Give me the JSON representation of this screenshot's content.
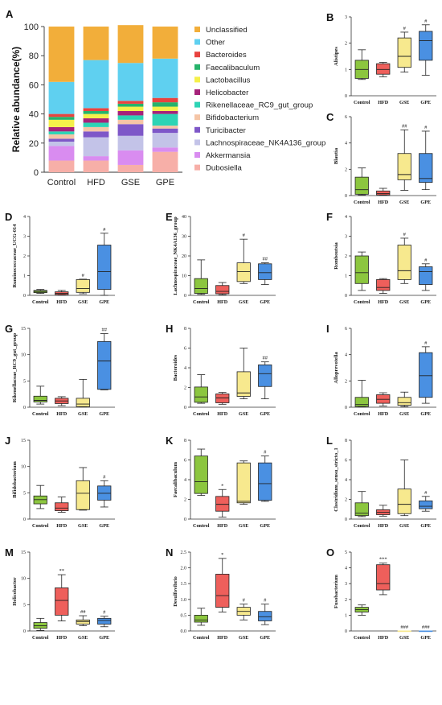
{
  "chart_data": [
    {
      "panel": "A",
      "type": "bar",
      "stacked": true,
      "ylabel": "Relative abundance(%)",
      "ylim": [
        0,
        100
      ],
      "yticks": [
        "0",
        "20",
        "40",
        "60",
        "80",
        "100"
      ],
      "categories": [
        "Control",
        "HFD",
        "GSE",
        "GPE"
      ],
      "series": [
        {
          "name": "Dubosiella",
          "color": "#F7AFA8",
          "values": [
            8,
            8,
            5,
            14
          ]
        },
        {
          "name": "Akkermansia",
          "color": "#D98CF0",
          "values": [
            10,
            3,
            10,
            3
          ]
        },
        {
          "name": "Lachnospiraceae_NK4A136_group",
          "color": "#C3C3E8",
          "values": [
            3,
            13,
            10,
            10
          ]
        },
        {
          "name": "Turicibacter",
          "color": "#7E57C8",
          "values": [
            2,
            4,
            8,
            3
          ]
        },
        {
          "name": "Bifidobacterium",
          "color": "#F5C5A6",
          "values": [
            3,
            3,
            3,
            2
          ]
        },
        {
          "name": "Rikenellaceae_RC9_gut_group",
          "color": "#2DD4B5",
          "values": [
            2,
            3,
            3,
            8
          ]
        },
        {
          "name": "Helicobacter",
          "color": "#A6227A",
          "values": [
            3,
            3,
            3,
            2
          ]
        },
        {
          "name": "Lactobacillus",
          "color": "#F5F04A",
          "values": [
            5,
            3,
            3,
            3
          ]
        },
        {
          "name": "Faecalibaculum",
          "color": "#26B36B",
          "values": [
            2,
            2,
            2,
            3
          ]
        },
        {
          "name": "Bacteroides",
          "color": "#E8433F",
          "values": [
            2,
            2,
            2,
            3
          ]
        },
        {
          "name": "Other",
          "color": "#5FD0F0",
          "values": [
            22,
            33,
            26,
            27
          ]
        },
        {
          "name": "Unclassified",
          "color": "#F2AE3A",
          "values": [
            38,
            23,
            26,
            22
          ]
        }
      ]
    },
    {
      "panel": "B",
      "type": "box",
      "ylabel": "Alistipes",
      "ylim": [
        0,
        3
      ],
      "yticks": [
        "0",
        "1",
        "2",
        "3"
      ],
      "categories": [
        "Control",
        "HFD",
        "GSE",
        "GPE"
      ],
      "boxes": [
        {
          "min": 0.62,
          "q1": 0.66,
          "median": 1.0,
          "q3": 1.35,
          "max": 1.75,
          "sig": ""
        },
        {
          "min": 0.72,
          "q1": 0.82,
          "median": 1.0,
          "q3": 1.22,
          "max": 1.27,
          "sig": ""
        },
        {
          "min": 0.9,
          "q1": 1.08,
          "median": 1.5,
          "q3": 2.2,
          "max": 2.42,
          "sig": "#"
        },
        {
          "min": 0.78,
          "q1": 1.35,
          "median": 2.1,
          "q3": 2.45,
          "max": 2.7,
          "sig": "#"
        }
      ]
    },
    {
      "panel": "C",
      "type": "box",
      "ylabel": "Blautia",
      "ylim": [
        0,
        6
      ],
      "yticks": [
        "0",
        "2",
        "4",
        "6"
      ],
      "categories": [
        "Control",
        "HFD",
        "GSE",
        "GPE"
      ],
      "boxes": [
        {
          "min": 0.05,
          "q1": 0.1,
          "median": 0.45,
          "q3": 1.4,
          "max": 2.1,
          "sig": ""
        },
        {
          "min": 0.02,
          "q1": 0.05,
          "median": 0.15,
          "q3": 0.35,
          "max": 0.55,
          "sig": ""
        },
        {
          "min": 0.4,
          "q1": 1.2,
          "median": 1.6,
          "q3": 3.2,
          "max": 5.0,
          "sig": "##"
        },
        {
          "min": 0.45,
          "q1": 1.0,
          "median": 1.3,
          "q3": 3.2,
          "max": 4.9,
          "sig": "#"
        }
      ]
    },
    {
      "panel": "D",
      "type": "box",
      "ylabel": "Ruminococcaceae_UCG-014",
      "ylim": [
        0,
        4
      ],
      "yticks": [
        "0",
        "1",
        "2",
        "3",
        "4"
      ],
      "categories": [
        "Control",
        "HFD",
        "GSE",
        "GPE"
      ],
      "boxes": [
        {
          "min": 0.1,
          "q1": 0.14,
          "median": 0.2,
          "q3": 0.25,
          "max": 0.3,
          "sig": ""
        },
        {
          "min": 0.02,
          "q1": 0.04,
          "median": 0.1,
          "q3": 0.18,
          "max": 0.25,
          "sig": ""
        },
        {
          "min": 0.08,
          "q1": 0.15,
          "median": 0.35,
          "q3": 0.8,
          "max": 0.82,
          "sig": "#"
        },
        {
          "min": 0.0,
          "q1": 0.3,
          "median": 1.2,
          "q3": 2.55,
          "max": 3.15,
          "sig": "#"
        }
      ]
    },
    {
      "panel": "E",
      "type": "box",
      "ylabel": "Lachnospiraceae_NK4A136_group",
      "ylim": [
        0,
        40
      ],
      "yticks": [
        "0",
        "10",
        "20",
        "30",
        "40"
      ],
      "categories": [
        "Control",
        "HFD",
        "GSE",
        "GPE"
      ],
      "boxes": [
        {
          "min": 0.5,
          "q1": 1.0,
          "median": 3.5,
          "q3": 8.5,
          "max": 18.0,
          "sig": ""
        },
        {
          "min": 0.3,
          "q1": 0.8,
          "median": 2.0,
          "q3": 5.0,
          "max": 6.5,
          "sig": ""
        },
        {
          "min": 6.0,
          "q1": 7.0,
          "median": 12.0,
          "q3": 16.5,
          "max": 28.5,
          "sig": "#"
        },
        {
          "min": 5.5,
          "q1": 8.0,
          "median": 11.5,
          "q3": 16.0,
          "max": 16.5,
          "sig": "##"
        }
      ]
    },
    {
      "panel": "F",
      "type": "box",
      "ylabel": "Romboutsia",
      "ylim": [
        0,
        4
      ],
      "yticks": [
        "0",
        "1",
        "2",
        "3",
        "4"
      ],
      "categories": [
        "Control",
        "HFD",
        "GSE",
        "GPE"
      ],
      "boxes": [
        {
          "min": 0.25,
          "q1": 0.6,
          "median": 1.15,
          "q3": 2.0,
          "max": 2.2,
          "sig": ""
        },
        {
          "min": 0.1,
          "q1": 0.25,
          "median": 0.4,
          "q3": 0.8,
          "max": 0.85,
          "sig": ""
        },
        {
          "min": 0.6,
          "q1": 0.8,
          "median": 1.25,
          "q3": 2.55,
          "max": 2.9,
          "sig": "#"
        },
        {
          "min": 0.25,
          "q1": 0.55,
          "median": 1.2,
          "q3": 1.45,
          "max": 1.6,
          "sig": "#"
        }
      ]
    },
    {
      "panel": "G",
      "type": "box",
      "ylabel": "Rikenellaceae_RC9_gut_group",
      "ylim": [
        0,
        15
      ],
      "yticks": [
        "0",
        "5",
        "10",
        "15"
      ],
      "categories": [
        "Control",
        "HFD",
        "GSE",
        "GPE"
      ],
      "boxes": [
        {
          "min": 0.6,
          "q1": 1.0,
          "median": 1.3,
          "q3": 2.1,
          "max": 4.0,
          "sig": ""
        },
        {
          "min": 0.3,
          "q1": 0.7,
          "median": 1.2,
          "q3": 1.7,
          "max": 2.0,
          "sig": ""
        },
        {
          "min": 0.05,
          "q1": 0.1,
          "median": 0.6,
          "q3": 1.7,
          "max": 5.3,
          "sig": ""
        },
        {
          "min": 3.3,
          "q1": 3.4,
          "median": 8.8,
          "q3": 12.5,
          "max": 14.0,
          "sig": "##"
        }
      ]
    },
    {
      "panel": "H",
      "type": "box",
      "ylabel": "Bacteroides",
      "ylim": [
        0,
        8
      ],
      "yticks": [
        "0",
        "2",
        "4",
        "6",
        "8"
      ],
      "categories": [
        "Control",
        "HFD",
        "GSE",
        "GPE"
      ],
      "boxes": [
        {
          "min": 0.4,
          "q1": 0.5,
          "median": 1.05,
          "q3": 2.05,
          "max": 3.3,
          "sig": ""
        },
        {
          "min": 0.3,
          "q1": 0.45,
          "median": 0.95,
          "q3": 1.35,
          "max": 1.5,
          "sig": ""
        },
        {
          "min": 0.85,
          "q1": 1.1,
          "median": 1.45,
          "q3": 3.6,
          "max": 6.0,
          "sig": ""
        },
        {
          "min": 0.85,
          "q1": 2.1,
          "median": 3.4,
          "q3": 4.3,
          "max": 4.6,
          "sig": "##"
        }
      ]
    },
    {
      "panel": "I",
      "type": "box",
      "ylabel": "Alloprevotella",
      "ylim": [
        0,
        6
      ],
      "yticks": [
        "0",
        "2",
        "4",
        "6"
      ],
      "categories": [
        "Control",
        "HFD",
        "GSE",
        "GPE"
      ],
      "boxes": [
        {
          "min": 0.02,
          "q1": 0.05,
          "median": 0.2,
          "q3": 0.75,
          "max": 2.05,
          "sig": ""
        },
        {
          "min": 0.1,
          "q1": 0.3,
          "median": 0.6,
          "q3": 0.95,
          "max": 1.1,
          "sig": ""
        },
        {
          "min": 0.05,
          "q1": 0.15,
          "median": 0.35,
          "q3": 0.75,
          "max": 1.15,
          "sig": ""
        },
        {
          "min": 0.3,
          "q1": 0.75,
          "median": 2.4,
          "q3": 4.15,
          "max": 4.6,
          "sig": "#"
        }
      ]
    },
    {
      "panel": "J",
      "type": "box",
      "ylabel": "Bifidobacterium",
      "ylim": [
        0,
        15
      ],
      "yticks": [
        "0",
        "5",
        "10",
        "15"
      ],
      "categories": [
        "Control",
        "HFD",
        "GSE",
        "GPE"
      ],
      "boxes": [
        {
          "min": 2.0,
          "q1": 2.9,
          "median": 3.7,
          "q3": 4.4,
          "max": 6.4,
          "sig": ""
        },
        {
          "min": 1.3,
          "q1": 1.6,
          "median": 2.1,
          "q3": 3.1,
          "max": 4.2,
          "sig": ""
        },
        {
          "min": 1.7,
          "q1": 1.8,
          "median": 4.9,
          "q3": 7.3,
          "max": 9.8,
          "sig": ""
        },
        {
          "min": 2.3,
          "q1": 3.6,
          "median": 4.9,
          "q3": 6.3,
          "max": 7.3,
          "sig": "#"
        }
      ]
    },
    {
      "panel": "K",
      "type": "box",
      "ylabel": "Faecalibaculum",
      "ylim": [
        0,
        8
      ],
      "yticks": [
        "0",
        "2",
        "4",
        "6",
        "8"
      ],
      "categories": [
        "Control",
        "HFD",
        "GSE",
        "GPE"
      ],
      "boxes": [
        {
          "min": 2.4,
          "q1": 2.6,
          "median": 3.8,
          "q3": 6.4,
          "max": 7.1,
          "sig": ""
        },
        {
          "min": 0.2,
          "q1": 0.8,
          "median": 1.5,
          "q3": 2.3,
          "max": 3.0,
          "sig": "*"
        },
        {
          "min": 1.5,
          "q1": 1.65,
          "median": 1.8,
          "q3": 5.7,
          "max": 5.9,
          "sig": ""
        },
        {
          "min": 1.8,
          "q1": 1.9,
          "median": 3.6,
          "q3": 5.7,
          "max": 6.4,
          "sig": "#"
        }
      ]
    },
    {
      "panel": "L",
      "type": "box",
      "ylabel": "Clostridium_sensu_stricto_1",
      "ylim": [
        0,
        8
      ],
      "yticks": [
        "0",
        "2",
        "4",
        "6",
        "8"
      ],
      "categories": [
        "Control",
        "HFD",
        "GSE",
        "GPE"
      ],
      "boxes": [
        {
          "min": 0.25,
          "q1": 0.35,
          "median": 0.6,
          "q3": 1.65,
          "max": 2.8,
          "sig": ""
        },
        {
          "min": 0.3,
          "q1": 0.45,
          "median": 0.7,
          "q3": 0.95,
          "max": 1.4,
          "sig": ""
        },
        {
          "min": 0.35,
          "q1": 0.55,
          "median": 1.5,
          "q3": 3.05,
          "max": 6.0,
          "sig": ""
        },
        {
          "min": 0.8,
          "q1": 1.05,
          "median": 1.3,
          "q3": 1.85,
          "max": 2.3,
          "sig": "#"
        }
      ]
    },
    {
      "panel": "M",
      "type": "box",
      "ylabel": "Helicobacter",
      "ylim": [
        0,
        15
      ],
      "yticks": [
        "0",
        "5",
        "10",
        "15"
      ],
      "categories": [
        "Control",
        "HFD",
        "GSE",
        "GPE"
      ],
      "boxes": [
        {
          "min": 0.1,
          "q1": 0.5,
          "median": 1.0,
          "q3": 1.6,
          "max": 2.4,
          "sig": ""
        },
        {
          "min": 1.9,
          "q1": 3.0,
          "median": 5.8,
          "q3": 8.2,
          "max": 10.7,
          "sig": "**"
        },
        {
          "min": 1.0,
          "q1": 1.3,
          "median": 1.8,
          "q3": 2.1,
          "max": 2.9,
          "sig": "##"
        },
        {
          "min": 0.8,
          "q1": 1.3,
          "median": 2.0,
          "q3": 2.4,
          "max": 2.8,
          "sig": "#"
        }
      ]
    },
    {
      "panel": "N",
      "type": "box",
      "ylabel": "Desulfovibrio",
      "ylim": [
        0,
        2.5
      ],
      "yticks": [
        "0.0",
        "0.5",
        "1.0",
        "1.5",
        "2.0",
        "2.5"
      ],
      "categories": [
        "Control",
        "HFD",
        "GSE",
        "GPE"
      ],
      "boxes": [
        {
          "min": 0.18,
          "q1": 0.28,
          "median": 0.35,
          "q3": 0.5,
          "max": 0.72,
          "sig": ""
        },
        {
          "min": 0.6,
          "q1": 0.75,
          "median": 1.12,
          "q3": 1.8,
          "max": 2.3,
          "sig": "*"
        },
        {
          "min": 0.35,
          "q1": 0.5,
          "median": 0.62,
          "q3": 0.75,
          "max": 0.85,
          "sig": "#"
        },
        {
          "min": 0.2,
          "q1": 0.32,
          "median": 0.45,
          "q3": 0.62,
          "max": 0.85,
          "sig": "#"
        }
      ]
    },
    {
      "panel": "O",
      "type": "box",
      "ylabel": "Fusobacterium",
      "ylim": [
        0,
        5
      ],
      "yticks": [
        "0",
        "1",
        "2",
        "3",
        "4",
        "5"
      ],
      "categories": [
        "Control",
        "HFD",
        "GSE",
        "GPE"
      ],
      "boxes": [
        {
          "min": 1.0,
          "q1": 1.2,
          "median": 1.35,
          "q3": 1.5,
          "max": 1.65,
          "sig": ""
        },
        {
          "min": 2.3,
          "q1": 2.6,
          "median": 3.0,
          "q3": 4.2,
          "max": 4.3,
          "sig": "***"
        },
        {
          "min": 0.0,
          "q1": 0.0,
          "median": 0.0,
          "q3": 0.0,
          "max": 0.0,
          "sig": "###"
        },
        {
          "min": 0.0,
          "q1": 0.0,
          "median": 0.0,
          "q3": 0.0,
          "max": 0.0,
          "sig": "###"
        }
      ]
    }
  ],
  "group_colors": [
    "#8CC63F",
    "#EE5F5B",
    "#F7E98E",
    "#4A90E2"
  ]
}
